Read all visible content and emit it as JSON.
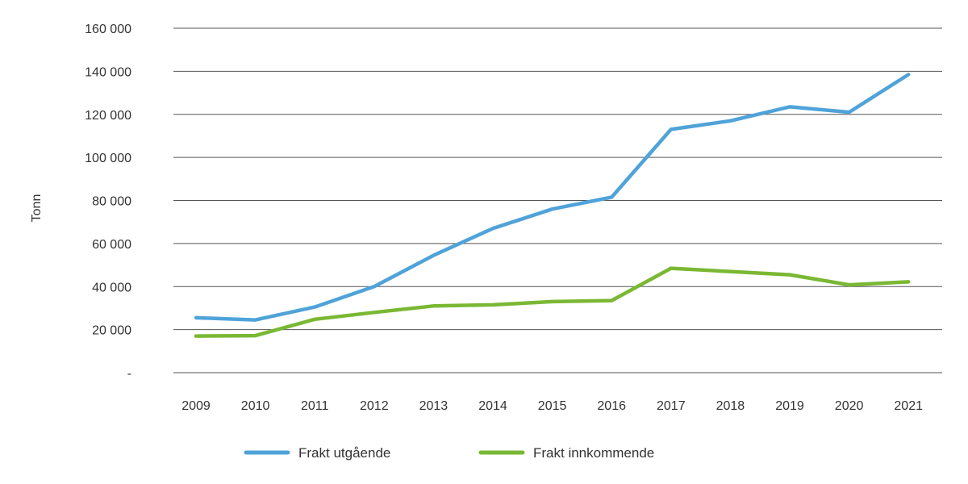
{
  "chart_data": {
    "type": "line",
    "title": "",
    "xlabel": "",
    "ylabel": "Tonn",
    "x": [
      "2009",
      "2010",
      "2011",
      "2012",
      "2013",
      "2014",
      "2015",
      "2016",
      "2017",
      "2018",
      "2019",
      "2020",
      "2021"
    ],
    "ylim": [
      0,
      160000
    ],
    "yticks": [
      0,
      20000,
      40000,
      60000,
      80000,
      100000,
      120000,
      140000,
      160000
    ],
    "ytick_labels": [
      "-",
      "20 000",
      "40 000",
      "60 000",
      "80 000",
      "100 000",
      "120 000",
      "140 000",
      "160 000"
    ],
    "grid": "horizontal",
    "legend_position": "bottom",
    "series": [
      {
        "name": "Frakt utgående",
        "color": "#4fa3d9",
        "values": [
          25500,
          24500,
          30500,
          40000,
          54500,
          67000,
          76000,
          81500,
          113000,
          117000,
          123500,
          121000,
          138500
        ]
      },
      {
        "name": "Frakt innkommende",
        "color": "#7ab833",
        "values": [
          17000,
          17200,
          24800,
          28000,
          31000,
          31500,
          33000,
          33500,
          48500,
          47000,
          45500,
          40800,
          42200
        ]
      }
    ]
  }
}
